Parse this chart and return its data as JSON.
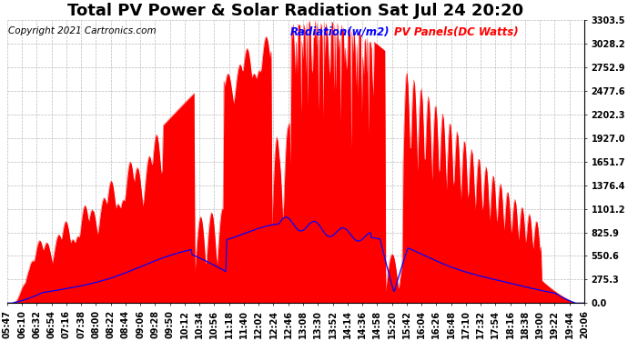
{
  "title": "Total PV Power & Solar Radiation Sat Jul 24 20:20",
  "copyright_text": "Copyright 2021 Cartronics.com",
  "legend_radiation": "Radiation(w/m2)",
  "legend_pv": "PV Panels(DC Watts)",
  "radiation_color": "blue",
  "pv_color": "red",
  "background_color": "#ffffff",
  "yticks": [
    0.0,
    275.3,
    550.6,
    825.9,
    1101.2,
    1376.4,
    1651.7,
    1927.0,
    2202.3,
    2477.6,
    2752.9,
    3028.2,
    3303.5
  ],
  "ymax": 3303.5,
  "ymin": 0.0,
  "x_labels": [
    "05:47",
    "06:10",
    "06:32",
    "06:54",
    "07:16",
    "07:38",
    "08:00",
    "08:22",
    "08:44",
    "09:06",
    "09:28",
    "09:50",
    "10:12",
    "10:34",
    "10:56",
    "11:18",
    "11:40",
    "12:02",
    "12:24",
    "12:46",
    "13:08",
    "13:30",
    "13:52",
    "14:14",
    "14:36",
    "14:58",
    "15:20",
    "15:42",
    "16:04",
    "16:26",
    "16:48",
    "17:10",
    "17:32",
    "17:54",
    "18:16",
    "18:38",
    "19:00",
    "19:22",
    "19:44",
    "20:06"
  ],
  "title_fontsize": 13,
  "axis_fontsize": 7,
  "copyright_fontsize": 7.5,
  "legend_fontsize": 8.5
}
